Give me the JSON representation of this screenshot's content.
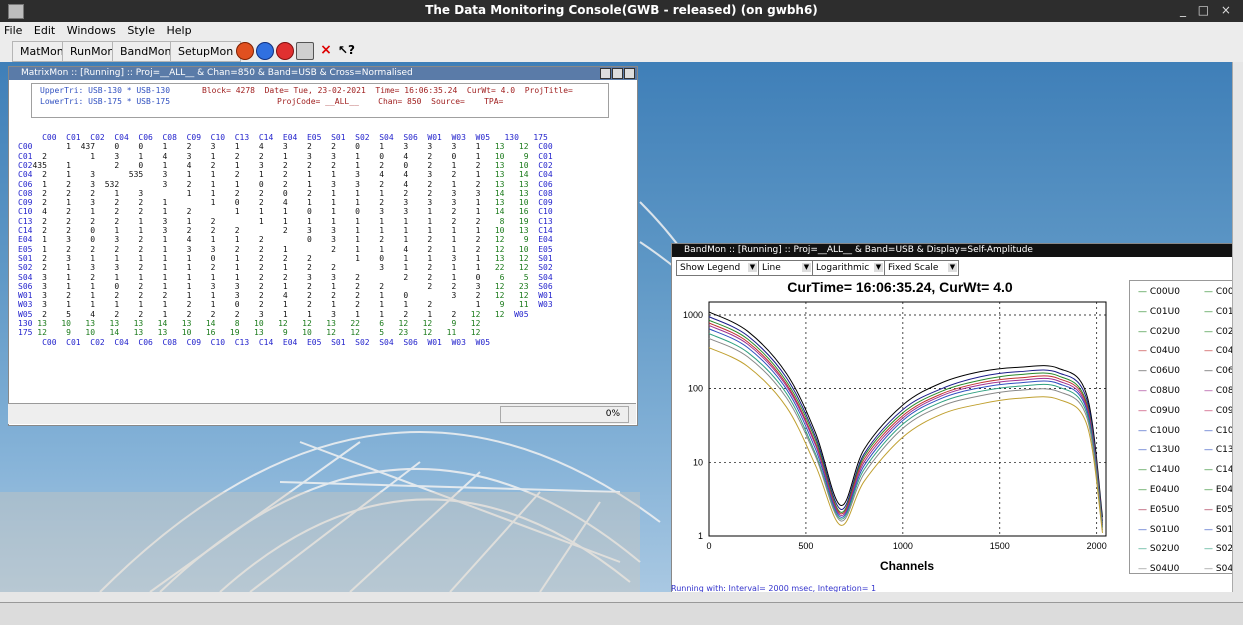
{
  "window_title": "The Data Monitoring Console(GWB - released) (on gwbh6)",
  "window_controls": "_ □ ×",
  "menu": [
    "File",
    "Edit",
    "Windows",
    "Style",
    "Help"
  ],
  "toolbar": {
    "buttons": [
      "MatMon",
      "RunMon",
      "BandMon",
      "SetupMon"
    ],
    "icons": [
      "power-icon",
      "refresh-icon",
      "stop-icon",
      "print-icon",
      "close-x-icon",
      "whats-this-icon"
    ]
  },
  "matrixmon": {
    "title": "MatrixMon :: [Running] :: Proj=__ALL__ & Chan=850 & Band=USB & Cross=Normalised",
    "upper_tri": "UpperTri: USB-130 * USB-130",
    "lower_tri": "LowerTri: USB-175 * USB-175",
    "info_line1": "Block= 4278  Date= Tue, 23-02-2021  Time= 16:06:35.24  CurWt= 4.0  ProjTitle=",
    "info_line2": "ProjCode= __ALL__    Chan= 850  Source=    TPA=",
    "col_header": "C00  C01  C02  C04  C06  C08  C09  C10  C13  C14  E04  E05  S01  S02  S04  S06  W01  W03  W05   130   175",
    "rows": [
      {
        "label": "C00",
        "values": "       1  437    0    0    1    2    3    1    4    3    2    2    0    1    3    3    3    1",
        "tail": "   13   12",
        "end": "C00"
      },
      {
        "label": "C01",
        "values": "  2         1    3    1    4    3    1    2    2    1    3    3    1    0    4    2    0    1",
        "tail": "   10    9",
        "end": "C01"
      },
      {
        "label": "C02",
        "values": "435    1         2    0    1    4    2    1    3    2    2    2    1    2    0    2    1    2",
        "tail": "   13   10",
        "end": "C02"
      },
      {
        "label": "C04",
        "values": "  2    1    3       535    3    1    1    2    1    2    1    1    3    4    4    3    2    1",
        "tail": "   13   14",
        "end": "C04"
      },
      {
        "label": "C06",
        "values": "  1    2    3  532         3    2    1    1    0    2    1    3    3    2    4    2    1    2",
        "tail": "   13   13",
        "end": "C06"
      },
      {
        "label": "C08",
        "values": "  2    2    2    1    3         1    1    2    2    0    2    1    1    1    2    2    3    3",
        "tail": "   14   13",
        "end": "C08"
      },
      {
        "label": "C09",
        "values": "  2    1    3    2    2    1         1    0    2    4    1    1    1    2    3    3    3    1",
        "tail": "   13   10",
        "end": "C09"
      },
      {
        "label": "C10",
        "values": "  4    2    1    2    2    1    2         1    1    1    0    1    0    3    3    1    2    1",
        "tail": "   14   16",
        "end": "C10"
      },
      {
        "label": "C13",
        "values": "  2    2    2    2    1    3    1    2         1    1    1    1    1    1    1    1    2    2",
        "tail": "    8   19",
        "end": "C13"
      },
      {
        "label": "C14",
        "values": "  2    2    0    1    1    3    2    2    2         2    3    3    1    1    1    1    1    1",
        "tail": "   10   13",
        "end": "C14"
      },
      {
        "label": "E04",
        "values": "  1    3    0    3    2    1    4    1    1    2         0    3    1    2    1    2    1    2",
        "tail": "   12    9",
        "end": "E04"
      },
      {
        "label": "E05",
        "values": "  1    2    2    2    2    1    3    3    2    2    1         2    1    1    4    2    1    2",
        "tail": "   12   10",
        "end": "E05"
      },
      {
        "label": "S01",
        "values": "  2    3    1    1    1    1    1    0    1    2    2    2         1    0    1    1    3    1",
        "tail": "   13   12",
        "end": "S01"
      },
      {
        "label": "S02",
        "values": "  2    1    3    3    2    1    1    2    1    2    1    2    2         3    1    2    1    1",
        "tail": "   22   12",
        "end": "S02"
      },
      {
        "label": "S04",
        "values": "  3    1    2    1    1    1    1    1    1    2    2    3    3    2         2    2    1    0",
        "tail": "    6    5",
        "end": "S04"
      },
      {
        "label": "S06",
        "values": "  3    1    1    0    2    1    1    3    3    2    1    2    1    2    2         2    2    3",
        "tail": "   12   23",
        "end": "S06"
      },
      {
        "label": "W01",
        "values": "  3    2    1    2    2    2    1    1    3    2    4    2    2    2    1    0         3    2",
        "tail": "   12   12",
        "end": "W01"
      },
      {
        "label": "W03",
        "values": "  3    1    1    1    1    1    2    1    0    2    1    2    1    2    1    1    2         1",
        "tail": "    9   11",
        "end": "W03"
      },
      {
        "label": "W05",
        "values": "  2    5    4    2    2    1    2    2    2    3    1    1    3    1    1    2    1    2",
        "tail": "   12   12",
        "end": "W05"
      }
    ],
    "row130": {
      "label": "130",
      "values": " 13   10   13   13   13   14   13   14    8   10   12   12   13   22    6   12   12    9   12"
    },
    "row175": {
      "label": "175",
      "values": " 12    9   10   14   13   13   10   16   19   13    9   10   12   12    5   23   12   11   12"
    },
    "col_footer": "C00  C01  C02  C04  C06  C08  C09  C10  C13  C14  E04  E05  S01  S02  S04  S06  W01  W03  W05",
    "progress": "0%"
  },
  "bandmon": {
    "title": "BandMon :: [Running] :: Proj=__ALL__ & Band=USB & Display=Self-Amplitude",
    "controls": [
      "Show Legend",
      "Line",
      "Logarithmic",
      "Fixed Scale"
    ],
    "status": "Running with: Interval= 2000 msec, Integration= 1",
    "legend": [
      {
        "a": "C00U0",
        "b": "C00",
        "color": "#2a8a2a"
      },
      {
        "a": "C01U0",
        "b": "C01",
        "color": "#2a8a2a"
      },
      {
        "a": "C02U0",
        "b": "C02",
        "color": "#2a8a2a"
      },
      {
        "a": "C04U0",
        "b": "C04",
        "color": "#c03030"
      },
      {
        "a": "C06U0",
        "b": "C06",
        "color": "#444444"
      },
      {
        "a": "C08U0",
        "b": "C08",
        "color": "#a03090"
      },
      {
        "a": "C09U0",
        "b": "C09",
        "color": "#c03060"
      },
      {
        "a": "C10U0",
        "b": "C10",
        "color": "#3050c0"
      },
      {
        "a": "C13U0",
        "b": "C13",
        "color": "#3050c0"
      },
      {
        "a": "C14U0",
        "b": "C14",
        "color": "#2a8a2a"
      },
      {
        "a": "E04U0",
        "b": "E04",
        "color": "#2a8a2a"
      },
      {
        "a": "E05U0",
        "b": "E05",
        "color": "#a02040"
      },
      {
        "a": "S01U0",
        "b": "S01",
        "color": "#3050c0"
      },
      {
        "a": "S02U0",
        "b": "S02",
        "color": "#30a080"
      },
      {
        "a": "S04U0",
        "b": "S04",
        "color": "#888888"
      }
    ]
  },
  "chart_data": {
    "type": "line",
    "title": "CurTime= 16:06:35.24,  CurWt=  4.0",
    "xlabel": "Channels",
    "ylabel": "",
    "xlim": [
      0,
      2048
    ],
    "ylim": [
      1,
      1500
    ],
    "y_scale": "log",
    "grid": true,
    "xticks": [
      0,
      500,
      1000,
      1500,
      2000
    ],
    "yticks": [
      1,
      10,
      100,
      1000
    ],
    "x": [
      0,
      200,
      400,
      550,
      680,
      800,
      1000,
      1200,
      1400,
      1600,
      1800,
      1950,
      2030
    ],
    "series": [
      {
        "color": "#000000",
        "values": [
          1100,
          600,
          160,
          25,
          2.6,
          15,
          60,
          120,
          170,
          195,
          190,
          80,
          1.8
        ]
      },
      {
        "color": "#1a1a8a",
        "values": [
          950,
          520,
          140,
          22,
          2.3,
          13,
          52,
          100,
          145,
          170,
          165,
          70,
          1.6
        ]
      },
      {
        "color": "#2a8a2a",
        "values": [
          850,
          470,
          125,
          20,
          2.1,
          12,
          47,
          92,
          130,
          155,
          150,
          62,
          1.5
        ]
      },
      {
        "color": "#c03030",
        "values": [
          780,
          430,
          115,
          18,
          2.0,
          11,
          43,
          85,
          120,
          140,
          138,
          58,
          1.4
        ]
      },
      {
        "color": "#a03090",
        "values": [
          720,
          400,
          108,
          17,
          1.9,
          10,
          40,
          80,
          112,
          130,
          128,
          54,
          1.4
        ]
      },
      {
        "color": "#3050c0",
        "values": [
          650,
          360,
          98,
          15,
          1.8,
          9,
          37,
          74,
          103,
          120,
          118,
          50,
          1.3
        ]
      },
      {
        "color": "#30a080",
        "values": [
          560,
          310,
          86,
          13,
          1.7,
          8,
          33,
          66,
          92,
          108,
          106,
          45,
          1.3
        ]
      },
      {
        "color": "#888888",
        "values": [
          480,
          270,
          75,
          12,
          1.6,
          7,
          29,
          58,
          80,
          95,
          92,
          40,
          1.2
        ]
      },
      {
        "color": "#c0a030",
        "values": [
          360,
          200,
          56,
          9,
          1.4,
          5.5,
          22,
          45,
          62,
          74,
          72,
          32,
          1.1
        ]
      }
    ]
  }
}
